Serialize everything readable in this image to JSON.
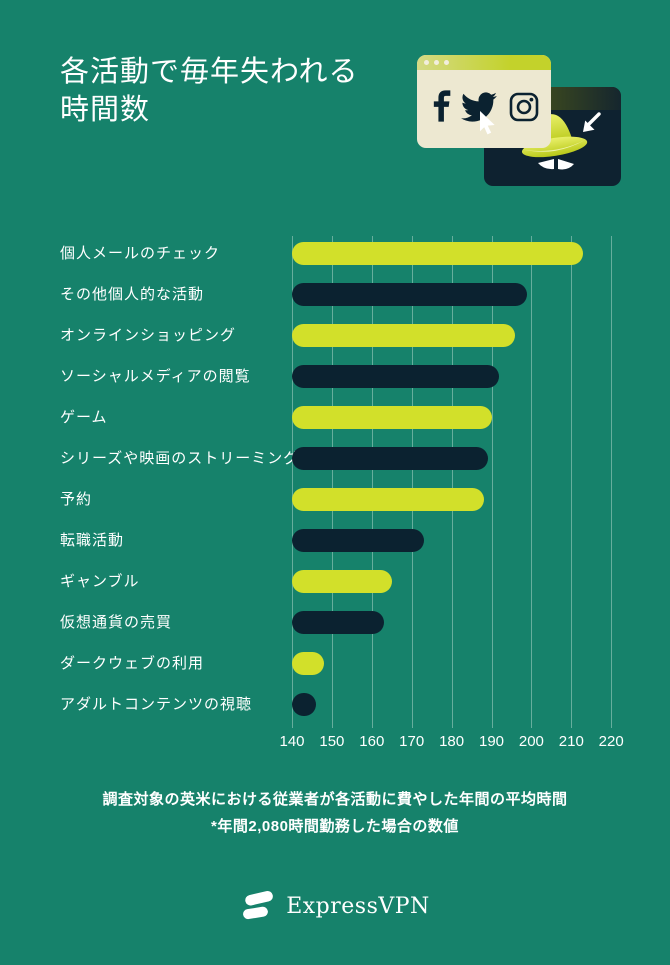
{
  "page": {
    "background_color": "#16826B",
    "accent_lime": "#D2E02A",
    "accent_navy": "#0B2230",
    "cream": "#EDE8D1",
    "text_color": "#FFFFFF"
  },
  "header": {
    "title_line1": "各活動で毎年失われる",
    "title_line2": "時間数"
  },
  "illustration": {
    "browser_window_icons": [
      "facebook-icon",
      "twitter-icon",
      "instagram-icon"
    ],
    "spy_window_icons": [
      "incognito-spy-icon",
      "arrow-cursor-icon"
    ],
    "cursor_icon": "pointer-cursor-icon"
  },
  "chart_data": {
    "type": "bar",
    "orientation": "horizontal",
    "title": "各活動で毎年失われる時間数",
    "categories": [
      "個人メールのチェック",
      "その他個人的な活動",
      "オンラインショッピング",
      "ソーシャルメディアの閲覧",
      "ゲーム",
      "シリーズや映画のストリーミング",
      "予約",
      "転職活動",
      "ギャンブル",
      "仮想通貨の売買",
      "ダークウェブの利用",
      "アダルトコンテンツの視聴"
    ],
    "values": [
      213,
      199,
      196,
      192,
      190,
      189,
      188,
      173,
      165,
      163,
      148,
      146
    ],
    "bar_colors_alternating": [
      "#D2E02A",
      "#0B2230"
    ],
    "x_ticks": [
      "140",
      "150",
      "160",
      "170",
      "180",
      "190",
      "200",
      "210",
      "220"
    ],
    "xlim": [
      140,
      220
    ],
    "grid": true,
    "legend": false
  },
  "footnote": {
    "line1": "調査対象の英米における従業者が各活動に費やした年間の平均時間",
    "line2": "*年間2,080時間勤務した場合の数値"
  },
  "footer": {
    "brand": "ExpressVPN"
  }
}
